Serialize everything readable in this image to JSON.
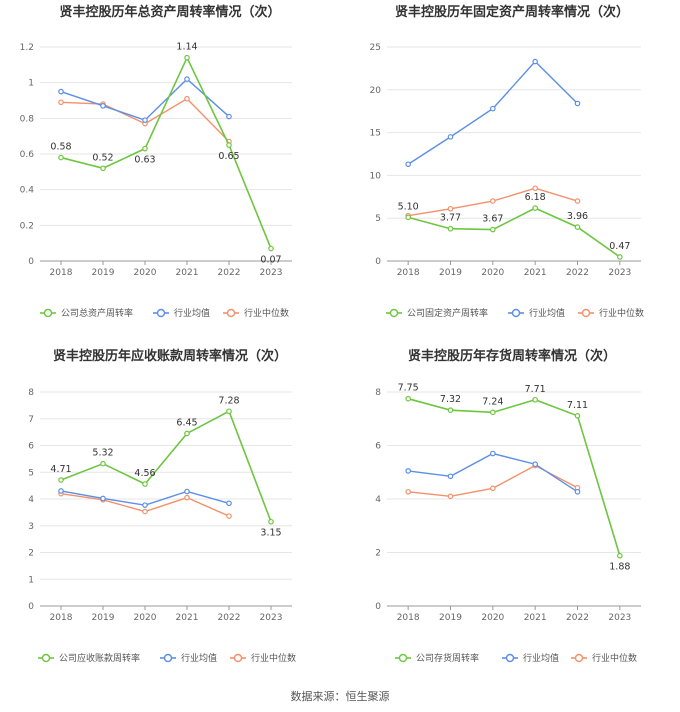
{
  "source": "数据来源：恒生聚源",
  "colors": {
    "company": "#6dc63f",
    "mean": "#5b8ee6",
    "median": "#f4906b",
    "grid": "#e6e6e6",
    "axis": "#999999"
  },
  "chart_data": [
    {
      "type": "line",
      "title": "贤丰控股历年总资产周转率情况（次）",
      "categories": [
        "2018",
        "2019",
        "2020",
        "2021",
        "2022",
        "2023"
      ],
      "ylim": [
        0,
        1.2
      ],
      "yticks": [
        "0",
        "0.2",
        "0.4",
        "0.6",
        "0.8",
        "1",
        "1.2"
      ],
      "grid": true,
      "legend": "bottom",
      "series": [
        {
          "name": "公司总资产周转率",
          "role": "company",
          "values": [
            0.58,
            0.52,
            0.63,
            1.14,
            0.65,
            0.07
          ],
          "labels": [
            "0.58",
            "0.52",
            "0.63",
            "1.14",
            "0.65",
            "0.07"
          ]
        },
        {
          "name": "行业均值",
          "role": "mean",
          "values": [
            0.95,
            0.87,
            0.79,
            1.02,
            0.81,
            null
          ]
        },
        {
          "name": "行业中位数",
          "role": "median",
          "values": [
            0.89,
            0.88,
            0.77,
            0.91,
            0.67,
            null
          ]
        }
      ]
    },
    {
      "type": "line",
      "title": "贤丰控股历年固定资产周转率情况（次）",
      "categories": [
        "2018",
        "2019",
        "2020",
        "2021",
        "2022",
        "2023"
      ],
      "ylim": [
        0,
        25
      ],
      "yticks": [
        "0",
        "5",
        "10",
        "15",
        "20",
        "25"
      ],
      "grid": true,
      "legend": "bottom",
      "series": [
        {
          "name": "公司固定资产周转率",
          "role": "company",
          "values": [
            5.1,
            3.77,
            3.67,
            6.18,
            3.96,
            0.47
          ],
          "labels": [
            "5.10",
            "3.77",
            "3.67",
            "6.18",
            "3.96",
            "0.47"
          ]
        },
        {
          "name": "行业均值",
          "role": "mean",
          "values": [
            11.3,
            14.5,
            17.8,
            23.3,
            18.4,
            null
          ]
        },
        {
          "name": "行业中位数",
          "role": "median",
          "values": [
            5.3,
            6.1,
            7.0,
            8.5,
            7.0,
            null
          ]
        }
      ]
    },
    {
      "type": "line",
      "title": "贤丰控股历年应收账款周转率情况（次）",
      "categories": [
        "2018",
        "2019",
        "2020",
        "2021",
        "2022",
        "2023"
      ],
      "ylim": [
        0,
        8
      ],
      "yticks": [
        "0",
        "1",
        "2",
        "3",
        "4",
        "5",
        "6",
        "7",
        "8"
      ],
      "grid": true,
      "legend": "bottom",
      "series": [
        {
          "name": "公司应收账款周转率",
          "role": "company",
          "values": [
            4.71,
            5.32,
            4.56,
            6.45,
            7.28,
            3.15
          ],
          "labels": [
            "4.71",
            "5.32",
            "4.56",
            "6.45",
            "7.28",
            "3.15"
          ]
        },
        {
          "name": "行业均值",
          "role": "mean",
          "values": [
            4.3,
            4.02,
            3.77,
            4.28,
            3.84,
            null
          ]
        },
        {
          "name": "行业中位数",
          "role": "median",
          "values": [
            4.2,
            3.97,
            3.53,
            4.05,
            3.36,
            null
          ]
        }
      ]
    },
    {
      "type": "line",
      "title": "贤丰控股历年存货周转率情况（次）",
      "categories": [
        "2018",
        "2019",
        "2020",
        "2021",
        "2022",
        "2023"
      ],
      "ylim": [
        0,
        8
      ],
      "yticks": [
        "0",
        "2",
        "4",
        "6",
        "8"
      ],
      "grid": true,
      "legend": "bottom",
      "series": [
        {
          "name": "公司存货周转率",
          "role": "company",
          "values": [
            7.75,
            7.32,
            7.24,
            7.71,
            7.11,
            1.88
          ],
          "labels": [
            "7.75",
            "7.32",
            "7.24",
            "7.71",
            "7.11",
            "1.88"
          ]
        },
        {
          "name": "行业均值",
          "role": "mean",
          "values": [
            5.05,
            4.85,
            5.7,
            5.3,
            4.27,
            null
          ]
        },
        {
          "name": "行业中位数",
          "role": "median",
          "values": [
            4.27,
            4.1,
            4.4,
            5.25,
            4.42,
            null
          ]
        }
      ]
    }
  ]
}
